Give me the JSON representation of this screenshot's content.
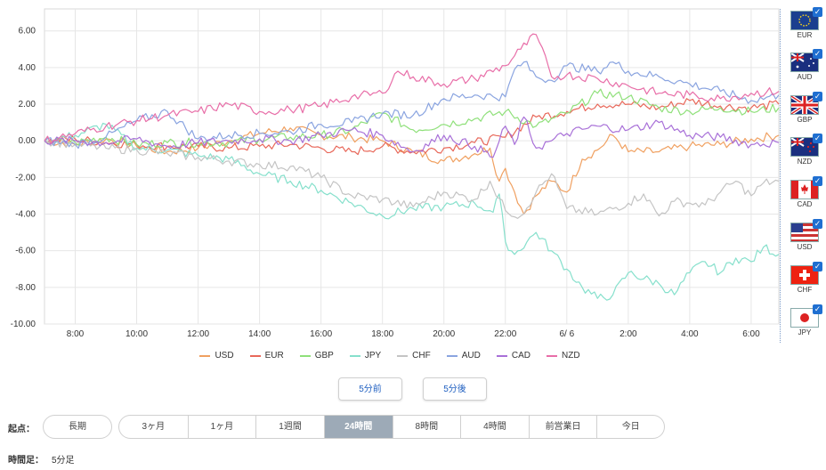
{
  "chart_data": {
    "type": "line",
    "xlabel": "",
    "ylabel": "",
    "ylim": [
      -10,
      7.2
    ],
    "yticks": [
      6,
      4,
      2,
      0,
      -2,
      -4,
      -6,
      -8,
      -10
    ],
    "ytick_labels": [
      "6.00",
      "4.00",
      "2.00",
      "0.00",
      "-2.00",
      "-4.00",
      "-6.00",
      "-8.00",
      "-10.00"
    ],
    "xlim": [
      7.0,
      30.9
    ],
    "xticks": [
      8,
      10,
      12,
      14,
      16,
      18,
      20,
      22,
      24,
      26,
      28,
      30
    ],
    "xtick_labels": [
      "8:00",
      "10:00",
      "12:00",
      "14:00",
      "16:00",
      "18:00",
      "20:00",
      "22:00",
      "6/ 6",
      "2:00",
      "4:00",
      "6:00"
    ],
    "grid": true,
    "legend_position": "bottom",
    "series": [
      {
        "name": "USD",
        "color": "#f0a060",
        "points": [
          [
            7.0,
            0.0
          ],
          [
            8.0,
            -0.2
          ],
          [
            9.0,
            0.1
          ],
          [
            10.0,
            -0.3
          ],
          [
            11.0,
            -0.6
          ],
          [
            12.0,
            -0.4
          ],
          [
            13.0,
            0.0
          ],
          [
            14.0,
            0.4
          ],
          [
            15.0,
            0.7
          ],
          [
            16.0,
            0.3
          ],
          [
            17.0,
            0.2
          ],
          [
            18.0,
            0.0
          ],
          [
            19.0,
            -0.6
          ],
          [
            20.0,
            -1.1
          ],
          [
            21.0,
            -0.7
          ],
          [
            21.5,
            -0.4
          ],
          [
            21.8,
            -2.2
          ],
          [
            22.0,
            -1.5
          ],
          [
            22.3,
            -2.8
          ],
          [
            22.6,
            -4.0
          ],
          [
            23.0,
            -3.0
          ],
          [
            23.5,
            -2.2
          ],
          [
            24.0,
            -2.8
          ],
          [
            24.5,
            -1.0
          ],
          [
            25.0,
            -0.5
          ],
          [
            25.5,
            0.3
          ],
          [
            26.0,
            -0.6
          ],
          [
            27.0,
            -0.6
          ],
          [
            28.0,
            -0.3
          ],
          [
            29.0,
            -0.2
          ],
          [
            30.0,
            0.1
          ],
          [
            30.9,
            0.3
          ]
        ]
      },
      {
        "name": "EUR",
        "color": "#e8685a",
        "points": [
          [
            7.0,
            0.0
          ],
          [
            8.0,
            0.1
          ],
          [
            9.0,
            -0.1
          ],
          [
            10.0,
            -0.2
          ],
          [
            11.0,
            -0.3
          ],
          [
            12.0,
            -0.3
          ],
          [
            13.0,
            -0.4
          ],
          [
            14.0,
            -0.3
          ],
          [
            15.0,
            -0.2
          ],
          [
            16.0,
            -0.4
          ],
          [
            17.0,
            -0.6
          ],
          [
            18.0,
            -0.3
          ],
          [
            19.0,
            -0.6
          ],
          [
            20.0,
            -0.4
          ],
          [
            21.0,
            -0.1
          ],
          [
            22.0,
            0.2
          ],
          [
            23.0,
            1.3
          ],
          [
            24.0,
            1.6
          ],
          [
            25.0,
            2.0
          ],
          [
            26.0,
            2.0
          ],
          [
            27.0,
            1.8
          ],
          [
            28.0,
            2.2
          ],
          [
            29.0,
            1.9
          ],
          [
            30.0,
            1.8
          ],
          [
            30.9,
            2.0
          ]
        ]
      },
      {
        "name": "GBP",
        "color": "#8fe07a",
        "points": [
          [
            7.0,
            0.0
          ],
          [
            8.0,
            -0.1
          ],
          [
            9.0,
            0.2
          ],
          [
            10.0,
            -0.2
          ],
          [
            11.0,
            -0.1
          ],
          [
            12.0,
            -0.1
          ],
          [
            13.0,
            -0.1
          ],
          [
            14.0,
            0.1
          ],
          [
            15.0,
            0.2
          ],
          [
            16.0,
            0.3
          ],
          [
            17.0,
            0.6
          ],
          [
            18.0,
            1.5
          ],
          [
            19.0,
            0.6
          ],
          [
            20.0,
            0.9
          ],
          [
            21.0,
            1.2
          ],
          [
            22.0,
            1.6
          ],
          [
            23.0,
            0.8
          ],
          [
            24.0,
            1.5
          ],
          [
            25.0,
            2.6
          ],
          [
            26.0,
            2.4
          ],
          [
            27.0,
            1.8
          ],
          [
            28.0,
            1.6
          ],
          [
            29.0,
            1.8
          ],
          [
            30.0,
            1.6
          ],
          [
            30.9,
            1.8
          ]
        ]
      },
      {
        "name": "JPY",
        "color": "#86e0cc",
        "points": [
          [
            7.0,
            0.0
          ],
          [
            8.0,
            0.3
          ],
          [
            9.0,
            0.9
          ],
          [
            10.0,
            -0.4
          ],
          [
            11.0,
            -0.5
          ],
          [
            12.0,
            -0.8
          ],
          [
            13.0,
            -1.0
          ],
          [
            14.0,
            -1.8
          ],
          [
            15.0,
            -2.2
          ],
          [
            16.0,
            -2.7
          ],
          [
            17.0,
            -3.4
          ],
          [
            18.0,
            -4.1
          ],
          [
            19.0,
            -3.7
          ],
          [
            20.0,
            -3.6
          ],
          [
            21.0,
            -3.4
          ],
          [
            21.6,
            -3.9
          ],
          [
            21.8,
            -2.9
          ],
          [
            22.0,
            -5.5
          ],
          [
            22.3,
            -6.2
          ],
          [
            23.0,
            -5.0
          ],
          [
            23.5,
            -6.0
          ],
          [
            24.0,
            -7.0
          ],
          [
            24.5,
            -8.0
          ],
          [
            25.0,
            -8.6
          ],
          [
            25.5,
            -8.4
          ],
          [
            26.0,
            -7.2
          ],
          [
            27.0,
            -7.8
          ],
          [
            27.5,
            -8.4
          ],
          [
            28.0,
            -7.2
          ],
          [
            28.5,
            -6.6
          ],
          [
            29.0,
            -7.2
          ],
          [
            29.5,
            -6.4
          ],
          [
            30.0,
            -6.6
          ],
          [
            30.4,
            -5.8
          ],
          [
            30.9,
            -6.2
          ]
        ]
      },
      {
        "name": "CHF",
        "color": "#c4c4c4",
        "points": [
          [
            7.0,
            0.0
          ],
          [
            8.0,
            -0.2
          ],
          [
            9.0,
            -0.4
          ],
          [
            10.0,
            -0.5
          ],
          [
            11.0,
            -0.7
          ],
          [
            12.0,
            -0.9
          ],
          [
            13.0,
            -1.1
          ],
          [
            14.0,
            -1.3
          ],
          [
            15.0,
            -1.4
          ],
          [
            16.0,
            -2.0
          ],
          [
            17.0,
            -3.0
          ],
          [
            18.0,
            -3.2
          ],
          [
            19.0,
            -3.6
          ],
          [
            20.0,
            -2.8
          ],
          [
            21.0,
            -3.2
          ],
          [
            21.5,
            -2.2
          ],
          [
            22.0,
            -3.8
          ],
          [
            22.5,
            -4.1
          ],
          [
            23.0,
            -2.8
          ],
          [
            23.5,
            -1.8
          ],
          [
            24.0,
            -3.7
          ],
          [
            25.0,
            -4.0
          ],
          [
            26.0,
            -3.4
          ],
          [
            26.5,
            -2.9
          ],
          [
            27.0,
            -4.1
          ],
          [
            27.5,
            -3.3
          ],
          [
            28.0,
            -3.4
          ],
          [
            28.5,
            -3.5
          ],
          [
            29.0,
            -2.8
          ],
          [
            29.5,
            -2.2
          ],
          [
            30.0,
            -3.0
          ],
          [
            30.4,
            -2.3
          ],
          [
            30.9,
            -2.2
          ]
        ]
      },
      {
        "name": "AUD",
        "color": "#8aa4e0",
        "points": [
          [
            7.0,
            0.0
          ],
          [
            8.0,
            -0.2
          ],
          [
            9.0,
            0.2
          ],
          [
            10.0,
            1.1
          ],
          [
            11.0,
            1.6
          ],
          [
            12.0,
            0.1
          ],
          [
            13.0,
            0.3
          ],
          [
            14.0,
            0.4
          ],
          [
            15.0,
            0.5
          ],
          [
            16.0,
            0.9
          ],
          [
            17.0,
            1.0
          ],
          [
            18.0,
            1.5
          ],
          [
            19.0,
            1.4
          ],
          [
            20.0,
            2.3
          ],
          [
            21.0,
            2.5
          ],
          [
            22.0,
            2.4
          ],
          [
            22.3,
            3.9
          ],
          [
            22.6,
            4.3
          ],
          [
            23.0,
            3.5
          ],
          [
            23.5,
            3.3
          ],
          [
            24.0,
            4.1
          ],
          [
            25.0,
            3.8
          ],
          [
            25.5,
            4.3
          ],
          [
            26.0,
            3.8
          ],
          [
            27.0,
            3.5
          ],
          [
            28.0,
            3.1
          ],
          [
            29.0,
            2.7
          ],
          [
            30.0,
            2.2
          ],
          [
            30.9,
            2.5
          ]
        ]
      },
      {
        "name": "CAD",
        "color": "#a870d8",
        "points": [
          [
            7.0,
            0.0
          ],
          [
            8.0,
            0.0
          ],
          [
            9.0,
            -0.1
          ],
          [
            10.0,
            0.1
          ],
          [
            11.0,
            -0.3
          ],
          [
            12.0,
            -0.1
          ],
          [
            13.0,
            0.0
          ],
          [
            14.0,
            0.1
          ],
          [
            15.0,
            0.0
          ],
          [
            16.0,
            0.3
          ],
          [
            17.0,
            0.6
          ],
          [
            18.0,
            0.3
          ],
          [
            19.0,
            -0.6
          ],
          [
            20.0,
            0.3
          ],
          [
            21.0,
            -0.3
          ],
          [
            21.6,
            -0.9
          ],
          [
            22.0,
            0.8
          ],
          [
            22.3,
            -0.2
          ],
          [
            22.6,
            1.3
          ],
          [
            23.0,
            -0.4
          ],
          [
            23.5,
            0.0
          ],
          [
            24.0,
            0.4
          ],
          [
            25.0,
            0.8
          ],
          [
            26.0,
            0.6
          ],
          [
            27.0,
            1.0
          ],
          [
            28.0,
            0.3
          ],
          [
            29.0,
            0.2
          ],
          [
            30.0,
            -0.2
          ],
          [
            30.9,
            -0.1
          ]
        ]
      },
      {
        "name": "NZD",
        "color": "#e86ea8",
        "points": [
          [
            7.0,
            0.0
          ],
          [
            8.0,
            0.4
          ],
          [
            9.0,
            0.8
          ],
          [
            10.0,
            1.1
          ],
          [
            11.0,
            1.4
          ],
          [
            12.0,
            1.6
          ],
          [
            13.0,
            2.0
          ],
          [
            14.0,
            1.6
          ],
          [
            15.0,
            1.7
          ],
          [
            16.0,
            1.9
          ],
          [
            17.0,
            2.4
          ],
          [
            18.0,
            2.6
          ],
          [
            18.5,
            3.8
          ],
          [
            19.0,
            3.5
          ],
          [
            20.0,
            3.1
          ],
          [
            21.0,
            3.4
          ],
          [
            22.0,
            4.1
          ],
          [
            22.5,
            5.0
          ],
          [
            23.0,
            5.8
          ],
          [
            23.5,
            3.5
          ],
          [
            24.0,
            3.6
          ],
          [
            25.0,
            3.4
          ],
          [
            26.0,
            3.0
          ],
          [
            27.0,
            2.6
          ],
          [
            28.0,
            2.5
          ],
          [
            29.0,
            2.3
          ],
          [
            30.0,
            2.6
          ],
          [
            30.9,
            2.7
          ]
        ]
      }
    ]
  },
  "flags": [
    {
      "code": "EUR",
      "icon": "eu-flag-icon"
    },
    {
      "code": "AUD",
      "icon": "au-flag-icon"
    },
    {
      "code": "GBP",
      "icon": "gb-flag-icon"
    },
    {
      "code": "NZD",
      "icon": "nz-flag-icon"
    },
    {
      "code": "CAD",
      "icon": "ca-flag-icon"
    },
    {
      "code": "USD",
      "icon": "us-flag-icon"
    },
    {
      "code": "CHF",
      "icon": "ch-flag-icon"
    },
    {
      "code": "JPY",
      "icon": "jp-flag-icon"
    }
  ],
  "buttons": {
    "prev": "5分前",
    "next": "5分後"
  },
  "start_label": "起点：",
  "periods": {
    "long": "長期",
    "p3m": "3ヶ月",
    "p1m": "1ヶ月",
    "p1w": "1週間",
    "p24h": "24時間",
    "p8h": "8時間",
    "p4h": "4時間",
    "prev_day": "前営業日",
    "today": "今日"
  },
  "active_period": "24時間",
  "timeframe_label": "時間足：",
  "timeframe_value": "5分足"
}
